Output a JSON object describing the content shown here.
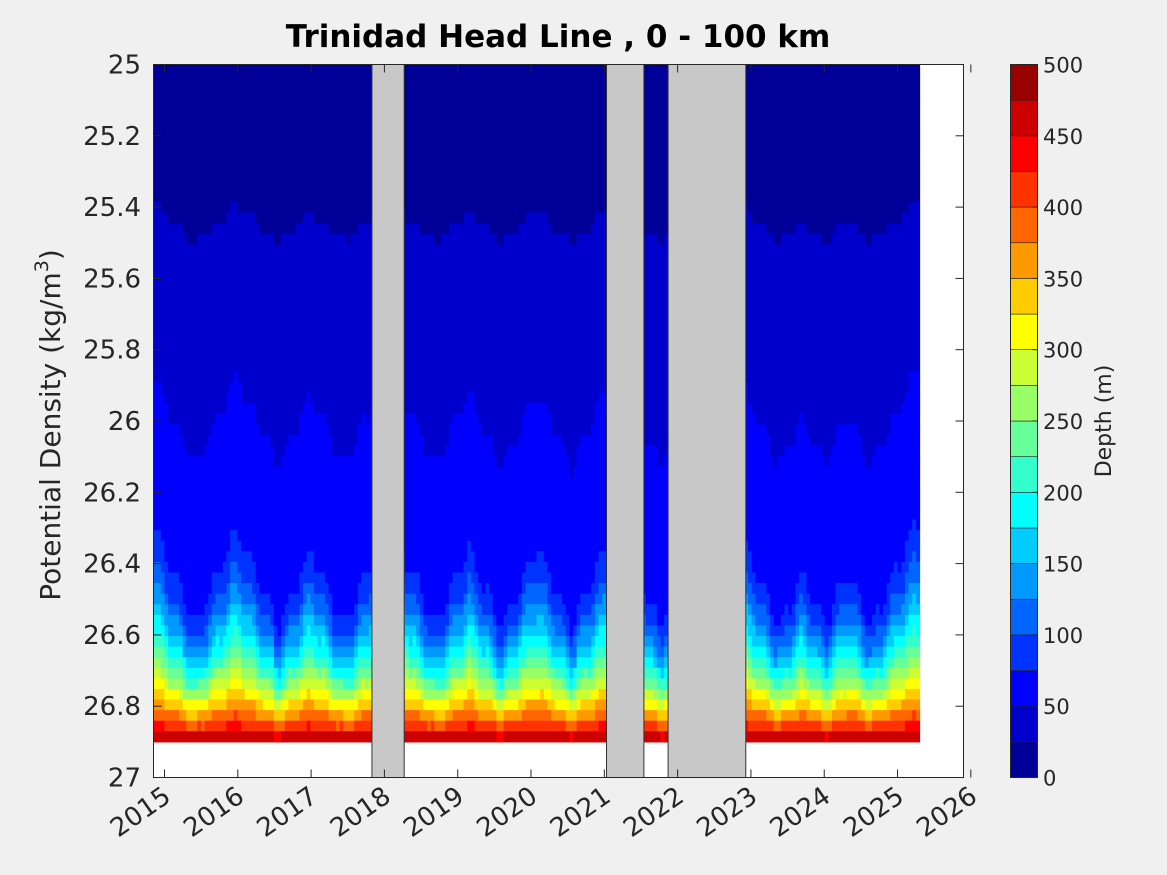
{
  "chart_data": {
    "type": "heatmap",
    "title": "Trinidad Head Line , 0 - 100 km",
    "ylabel_main": "Potential Density (kg/m",
    "ylabel_sup": "3",
    "ylabel_close": ")",
    "colorbar_label": "Depth (m)",
    "x_ticks": [
      "2015",
      "2016",
      "2017",
      "2018",
      "2019",
      "2020",
      "2021",
      "2022",
      "2023",
      "2024",
      "2025",
      "2026"
    ],
    "x_range": [
      2014.85,
      2025.9
    ],
    "y_ticks": [
      "25",
      "25.2",
      "25.4",
      "25.6",
      "25.8",
      "26",
      "26.2",
      "26.4",
      "26.6",
      "26.8",
      "27"
    ],
    "y_range": [
      25,
      27
    ],
    "y_reversed": true,
    "colorbar_ticks": [
      "0",
      "50",
      "100",
      "150",
      "200",
      "250",
      "300",
      "350",
      "400",
      "450",
      "500"
    ],
    "colorbar_range": [
      0,
      500
    ],
    "colorbar_levels": 20,
    "gray_gaps": [
      [
        2017.83,
        2018.27
      ],
      [
        2021.03,
        2021.54
      ],
      [
        2021.87,
        2022.93
      ]
    ],
    "colors": {
      "gap_fill": "#c8c8c8",
      "no_data": "#ffffff",
      "background": "#f0f0f0"
    }
  }
}
